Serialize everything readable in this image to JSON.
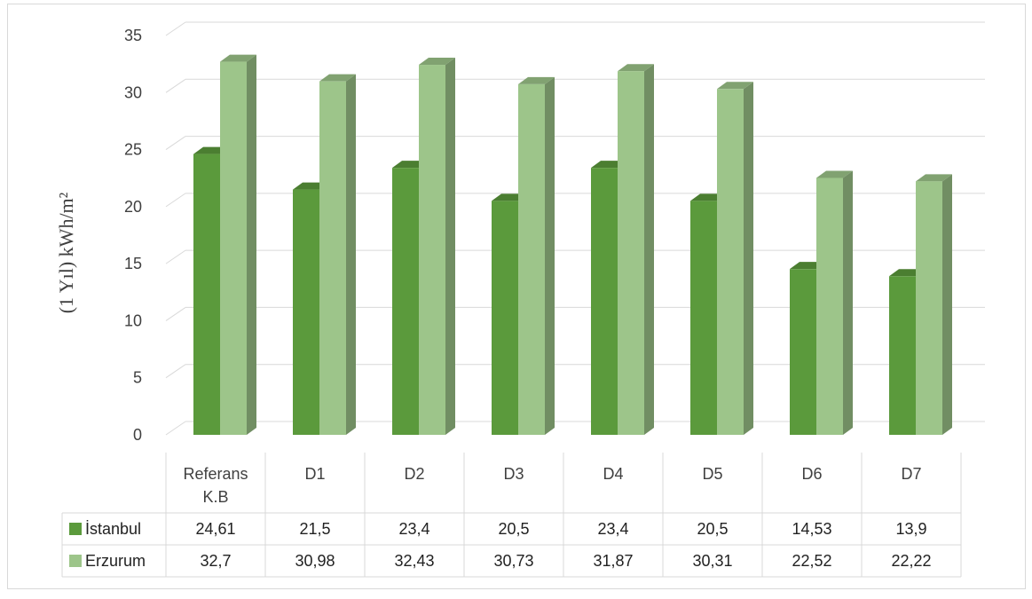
{
  "chart_data": {
    "type": "bar",
    "ylabel": "(1 Yıl) kWh/m²",
    "ylim": [
      0,
      35
    ],
    "yticks": [
      "0",
      "5",
      "10",
      "15",
      "20",
      "25",
      "30",
      "35"
    ],
    "grid": true,
    "style": "3d-clustered-column-with-data-table",
    "categories": [
      [
        "Referans",
        "K.B"
      ],
      [
        "D1"
      ],
      [
        "D2"
      ],
      [
        "D3"
      ],
      [
        "D4"
      ],
      [
        "D5"
      ],
      [
        "D6"
      ],
      [
        "D7"
      ]
    ],
    "series": [
      {
        "name": "İstanbul",
        "values": [
          24.61,
          21.5,
          23.4,
          20.5,
          23.4,
          20.5,
          14.53,
          13.9
        ],
        "labels": [
          "24,61",
          "21,5",
          "23,4",
          "20,5",
          "23,4",
          "20,5",
          "14,53",
          "13,9"
        ],
        "color": "#5b9a3c"
      },
      {
        "name": "Erzurum",
        "values": [
          32.7,
          30.98,
          32.43,
          30.73,
          31.87,
          30.31,
          22.52,
          22.22
        ],
        "labels": [
          "32,7",
          "30,98",
          "32,43",
          "30,73",
          "31,87",
          "30,31",
          "22,52",
          "22,22"
        ],
        "color": "#9dc58a"
      }
    ]
  }
}
